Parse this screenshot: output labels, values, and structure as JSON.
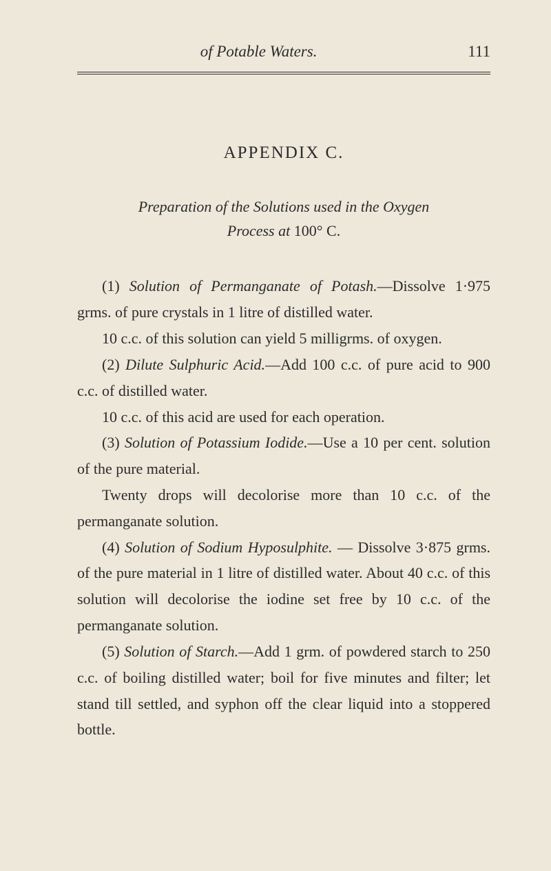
{
  "page": {
    "running_title": "of Potable Waters.",
    "page_number": "111"
  },
  "appendix": {
    "title": "APPENDIX C.",
    "subtitle_line1": "Preparation of the Solutions used in the Oxygen",
    "subtitle_line2": "Process at",
    "subtitle_temp": "100° C."
  },
  "paragraphs": {
    "p1_num": "(1)",
    "p1_italic": "Solution of Permanganate of Potash.",
    "p1_text": "—Dissolve 1·975 grms. of pure crystals in 1 litre of distilled water.",
    "p2_text": "10 c.c. of this solution can yield 5 milligrms. of oxygen.",
    "p3_num": "(2)",
    "p3_italic": "Dilute Sulphuric Acid.",
    "p3_text": "—Add 100 c.c. of pure acid to 900 c.c. of distilled water.",
    "p4_text": "10 c.c. of this acid are used for each operation.",
    "p5_num": "(3)",
    "p5_italic": "Solution of Potassium Iodide.",
    "p5_text": "—Use a 10 per cent. solution of the pure material.",
    "p6_text": "Twenty drops will decolorise more than 10 c.c. of the permanganate solution.",
    "p7_num": "(4)",
    "p7_italic": "Solution of Sodium Hyposulphite.",
    "p7_text": " — Dissolve 3·875 grms. of the pure material in 1 litre of distilled water. About 40 c.c. of this solution will decolorise the iodine set free by 10 c.c. of the permanganate solution.",
    "p8_num": "(5)",
    "p8_italic": "Solution of Starch.",
    "p8_text": "—Add 1 grm. of powdered starch to 250 c.c. of boiling distilled water; boil for five minutes and filter; let stand till settled, and syphon off the clear liquid into a stoppered bottle."
  },
  "colors": {
    "background": "#ede8da",
    "text": "#2b2b2b",
    "rule": "#2b2b2b"
  },
  "typography": {
    "body_fontsize": 22,
    "title_fontsize": 25,
    "line_height": 1.72
  }
}
